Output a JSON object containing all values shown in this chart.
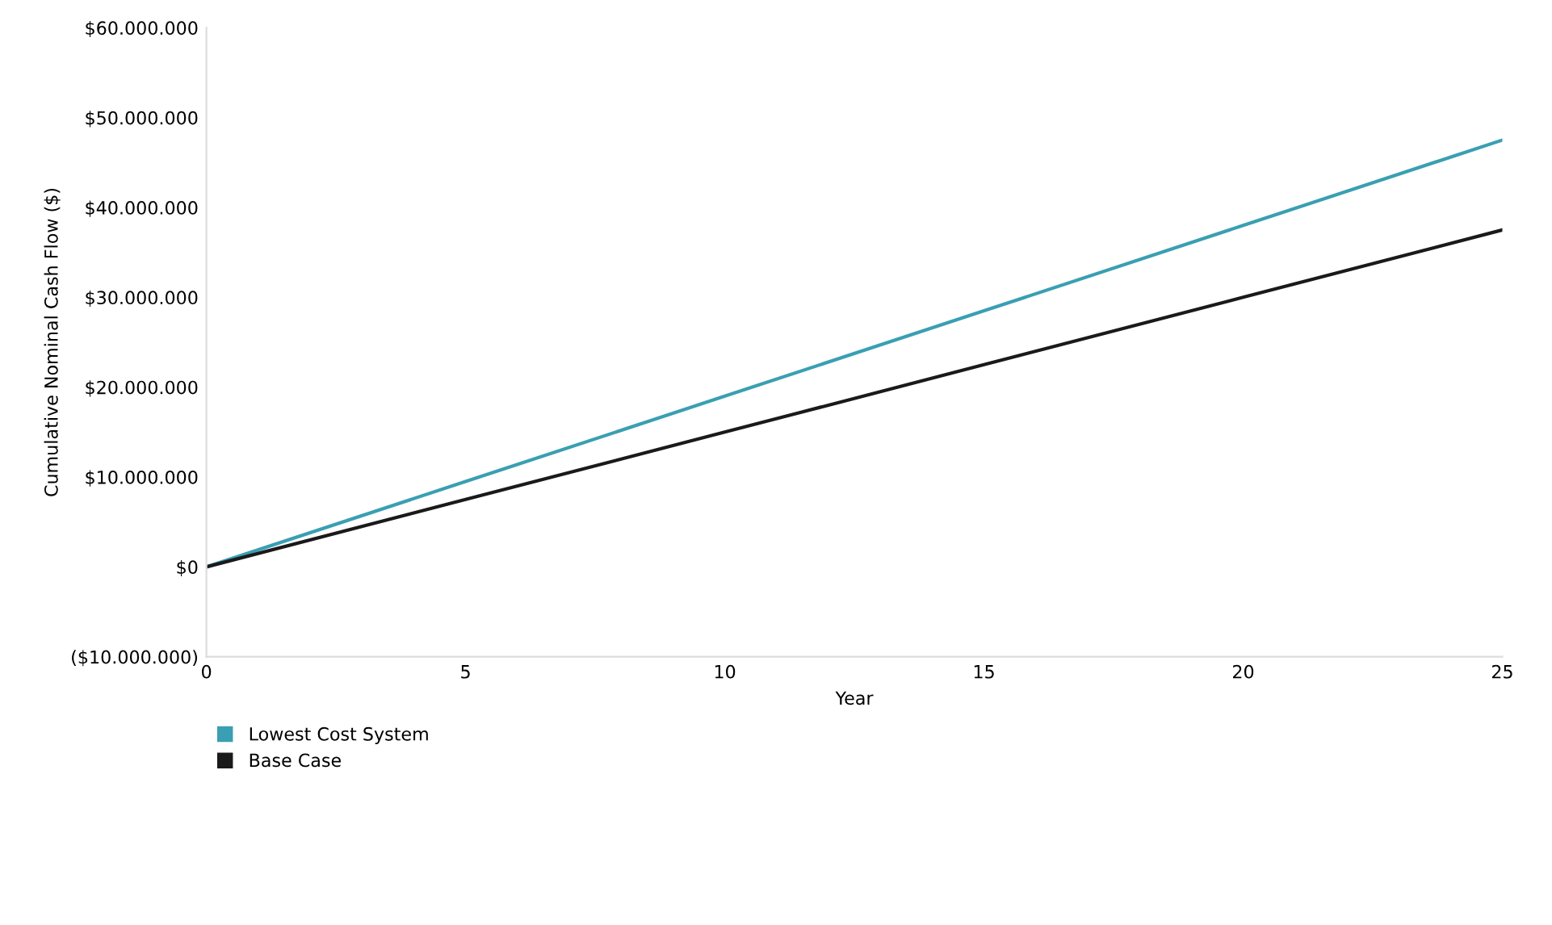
{
  "chart_data": {
    "type": "line",
    "xlabel": "Year",
    "ylabel": "Cumulative Nominal Cash Flow ($)",
    "x": [
      0,
      5,
      10,
      15,
      20,
      25
    ],
    "series": [
      {
        "name": "Lowest Cost System",
        "color": "#3a9fb2",
        "values": [
          0,
          9500000,
          19000000,
          28500000,
          38000000,
          47500000
        ]
      },
      {
        "name": "Base Case",
        "color": "#1a1a1a",
        "values": [
          0,
          7500000,
          15000000,
          22500000,
          30000000,
          37500000
        ]
      }
    ],
    "xlim": [
      0,
      25
    ],
    "xticks": [
      0,
      5,
      10,
      15,
      20,
      25
    ],
    "ylim": [
      -10000000,
      60000000
    ],
    "yticks": [
      {
        "value": -10000000,
        "label": "($10.000.000)"
      },
      {
        "value": 0,
        "label": "$0"
      },
      {
        "value": 10000000,
        "label": "$10.000.000"
      },
      {
        "value": 20000000,
        "label": "$20.000.000"
      },
      {
        "value": 30000000,
        "label": "$30.000.000"
      },
      {
        "value": 40000000,
        "label": "$40.000.000"
      },
      {
        "value": 50000000,
        "label": "$50.000.000"
      },
      {
        "value": 60000000,
        "label": "$60.000.000"
      }
    ],
    "grid": false,
    "legend": "bottom left",
    "marker": "none",
    "line_style": "solid"
  }
}
